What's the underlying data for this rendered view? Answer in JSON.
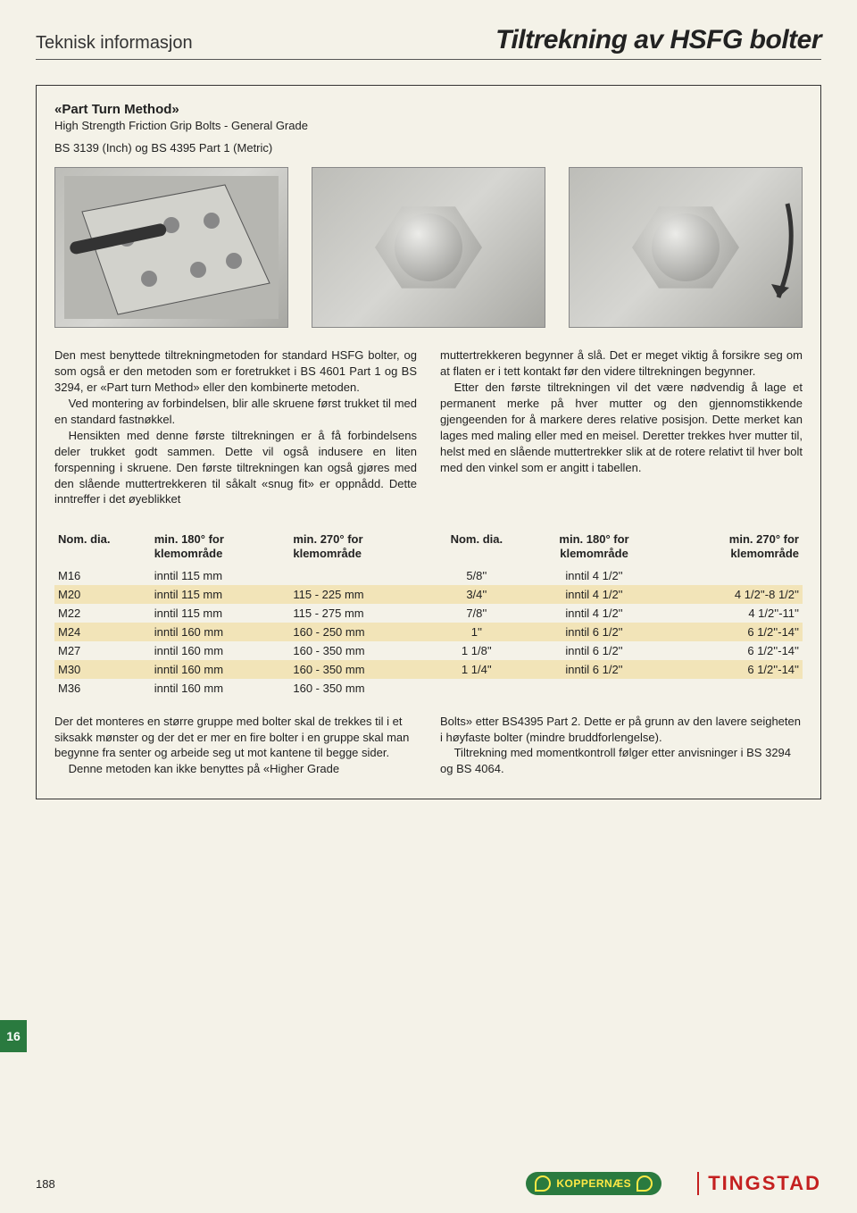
{
  "header": {
    "left": "Teknisk informasjon",
    "right": "Tiltrekning av HSFG bolter"
  },
  "subtitle": {
    "strong": "«Part Turn Method»",
    "sub": "High Strength Friction Grip Bolts - General Grade",
    "spec": "BS 3139 (Inch) og BS 4395 Part 1 (Metric)"
  },
  "bodyLeft": {
    "p1": "Den mest benyttede tiltrekningmetoden for standard HSFG bolter, og som også er den metoden som er foretrukket i BS 4601 Part 1 og BS 3294, er «Part turn Method» eller den kombinerte metoden.",
    "p2": "Ved montering av forbindelsen, blir alle skruene først trukket til med en standard fastnøkkel.",
    "p3": "Hensikten med denne første tiltrekningen er å få forbindelsens deler trukket godt sammen. Dette vil også indusere en liten forspenning i skruene. Den første tiltrekningen kan også gjøres med den slående muttertrekkeren til såkalt «snug fit» er oppnådd. Dette inntreffer i det øyeblikket"
  },
  "bodyRight": {
    "p1": "muttertrekkeren begynner å slå. Det er meget viktig å forsikre seg om at flaten er i tett kontakt før den videre tiltrekningen begynner.",
    "p2": "Etter den første tiltrekningen vil det være nødvendig å lage et permanent merke på hver mutter og den gjennomstikkende gjengeenden for å markere deres relative posisjon. Dette merket kan lages med maling eller med en meisel. Deretter trekkes hver mutter til, helst med en slående muttertrekker slik at de rotere relativt til hver bolt med den vinkel som er angitt i tabellen."
  },
  "table": {
    "headers": {
      "dia": "Nom. dia.",
      "c180a": "min. 180°",
      "c180b": "for klemområde",
      "c270a": "min. 270°",
      "c270b": "for klemområde"
    },
    "rows": [
      {
        "stripe": false,
        "m_dia": "M16",
        "m_180": "inntil 115 mm",
        "m_270": "",
        "i_dia": "5/8''",
        "i_180": "inntil 4 1/2''",
        "i_270": ""
      },
      {
        "stripe": true,
        "m_dia": "M20",
        "m_180": "inntil 115 mm",
        "m_270": "115 - 225 mm",
        "i_dia": "3/4''",
        "i_180": "inntil 4 1/2''",
        "i_270": "4 1/2''-8 1/2''"
      },
      {
        "stripe": false,
        "m_dia": "M22",
        "m_180": "inntil 115 mm",
        "m_270": "115 - 275 mm",
        "i_dia": "7/8''",
        "i_180": "inntil 4 1/2''",
        "i_270": "4 1/2''-11''"
      },
      {
        "stripe": true,
        "m_dia": "M24",
        "m_180": "inntil 160 mm",
        "m_270": "160 - 250 mm",
        "i_dia": "1''",
        "i_180": "inntil 6 1/2''",
        "i_270": "6 1/2''-14''"
      },
      {
        "stripe": false,
        "m_dia": "M27",
        "m_180": "inntil 160 mm",
        "m_270": "160 - 350 mm",
        "i_dia": "1 1/8''",
        "i_180": "inntil 6 1/2''",
        "i_270": "6 1/2''-14''"
      },
      {
        "stripe": true,
        "m_dia": "M30",
        "m_180": "inntil 160 mm",
        "m_270": "160 - 350 mm",
        "i_dia": "1 1/4''",
        "i_180": "inntil 6 1/2''",
        "i_270": "6 1/2''-14''"
      },
      {
        "stripe": false,
        "m_dia": "M36",
        "m_180": "inntil 160 mm",
        "m_270": "160 - 350 mm",
        "i_dia": "",
        "i_180": "",
        "i_270": ""
      }
    ]
  },
  "belowLeft": {
    "p1": "Der det monteres en større gruppe med bolter skal de trekkes til i et siksakk mønster og der det er mer en fire bolter i en gruppe skal man begynne fra senter og arbeide seg ut mot kantene til begge sider.",
    "p2": "Denne metoden kan ikke benyttes på «Higher Grade"
  },
  "belowRight": {
    "p1": "Bolts» etter BS4395 Part 2. Dette er på grunn av den lavere seigheten i høyfaste bolter (mindre bruddforlengelse).",
    "p2": "Tiltrekning med momentkontroll følger etter anvisninger i BS 3294 og BS 4064."
  },
  "sideTab": "16",
  "footer": {
    "pageNum": "188",
    "logo1": "KOPPERNÆS",
    "logo2": "TINGSTAD"
  },
  "colors": {
    "page_bg": "#f4f2e8",
    "stripe": "#f2e4b8",
    "tab_green": "#2a7a3f",
    "logo_red": "#c42020",
    "logo_yellow": "#ffe945"
  }
}
